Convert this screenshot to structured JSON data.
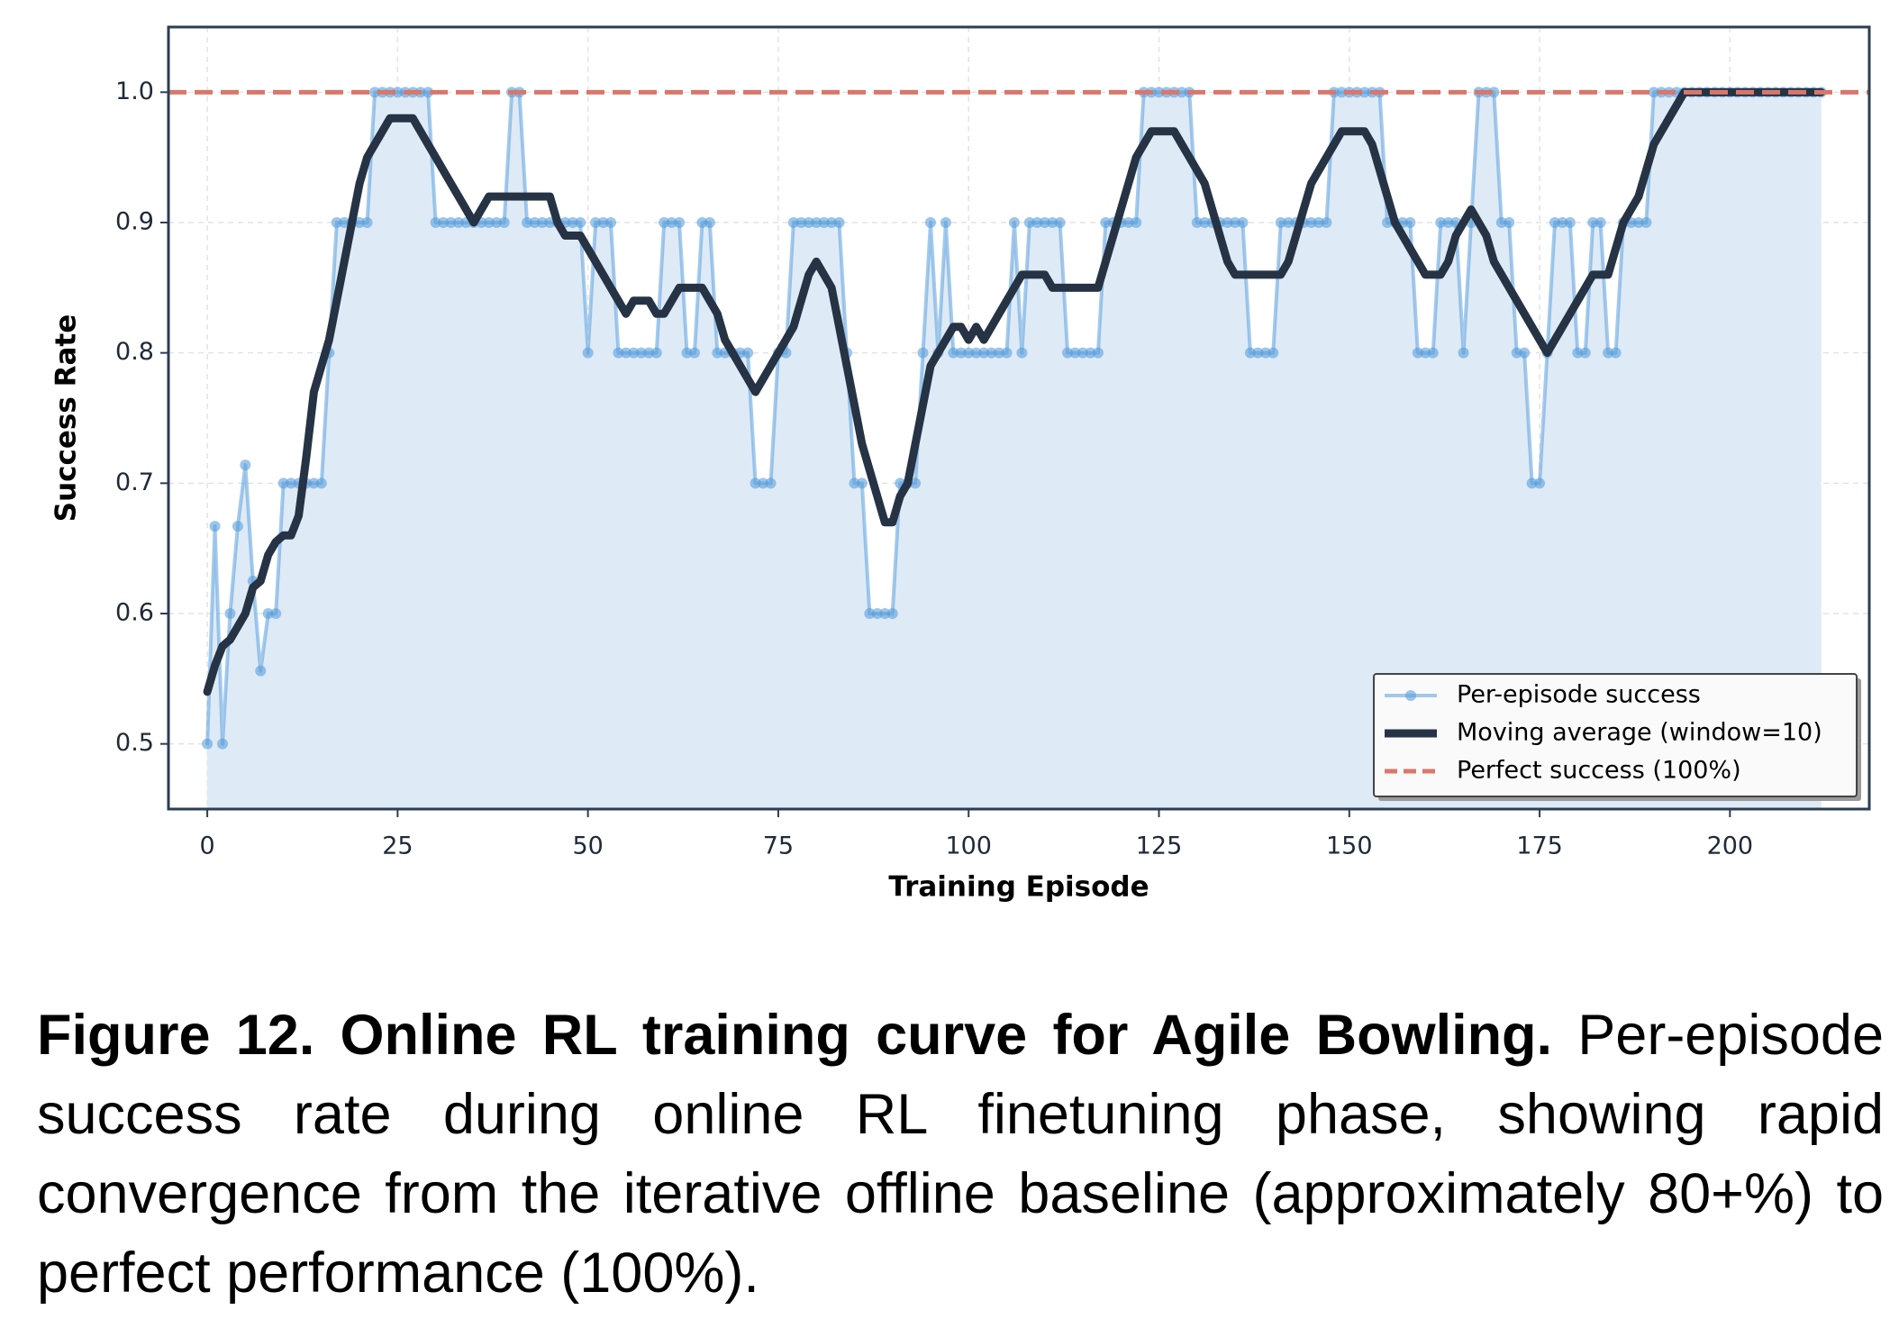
{
  "chart_data": {
    "type": "line",
    "xlabel": "Training Episode",
    "ylabel": "Success Rate",
    "x": [
      0,
      1,
      2,
      3,
      4,
      5,
      6,
      7,
      8,
      9,
      10,
      11,
      12,
      13,
      14,
      15,
      16,
      17,
      18,
      19,
      20,
      21,
      22,
      23,
      24,
      25,
      26,
      27,
      28,
      29,
      30,
      31,
      32,
      33,
      34,
      35,
      36,
      37,
      38,
      39,
      40,
      41,
      42,
      43,
      44,
      45,
      46,
      47,
      48,
      49,
      50,
      51,
      52,
      53,
      54,
      55,
      56,
      57,
      58,
      59,
      60,
      61,
      62,
      63,
      64,
      65,
      66,
      67,
      68,
      69,
      70,
      71,
      72,
      73,
      74,
      75,
      76,
      77,
      78,
      79,
      80,
      81,
      82,
      83,
      84,
      85,
      86,
      87,
      88,
      89,
      90,
      91,
      92,
      93,
      94,
      95,
      96,
      97,
      98,
      99,
      100,
      101,
      102,
      103,
      104,
      105,
      106,
      107,
      108,
      109,
      110,
      111,
      112,
      113,
      114,
      115,
      116,
      117,
      118,
      119,
      120,
      121,
      122,
      123,
      124,
      125,
      126,
      127,
      128,
      129,
      130,
      131,
      132,
      133,
      134,
      135,
      136,
      137,
      138,
      139,
      140,
      141,
      142,
      143,
      144,
      145,
      146,
      147,
      148,
      149,
      150,
      151,
      152,
      153,
      154,
      155,
      156,
      157,
      158,
      159,
      160,
      161,
      162,
      163,
      164,
      165,
      166,
      167,
      168,
      169,
      170,
      171,
      172,
      173,
      174,
      175,
      176,
      177,
      178,
      179,
      180,
      181,
      182,
      183,
      184,
      185,
      186,
      187,
      188,
      189,
      190,
      191,
      192,
      193,
      194,
      195,
      196,
      197,
      198,
      199,
      200,
      201,
      202,
      203,
      204,
      205,
      206,
      207,
      208,
      209,
      210,
      211,
      212
    ],
    "series": [
      {
        "name": "Per-episode success",
        "color": "#5a9fdc",
        "markers": true,
        "fill": "#deeaf6",
        "values": [
          0.5,
          0.667,
          0.5,
          0.6,
          0.667,
          0.714,
          0.625,
          0.556,
          0.6,
          0.6,
          0.7,
          0.7,
          0.7,
          0.7,
          0.7,
          0.7,
          0.8,
          0.9,
          0.9,
          0.9,
          0.9,
          0.9,
          1.0,
          1.0,
          1.0,
          1.0,
          1.0,
          1.0,
          1.0,
          1.0,
          0.9,
          0.9,
          0.9,
          0.9,
          0.9,
          0.9,
          0.9,
          0.9,
          0.9,
          0.9,
          1.0,
          1.0,
          0.9,
          0.9,
          0.9,
          0.9,
          0.9,
          0.9,
          0.9,
          0.9,
          0.8,
          0.9,
          0.9,
          0.9,
          0.8,
          0.8,
          0.8,
          0.8,
          0.8,
          0.8,
          0.9,
          0.9,
          0.9,
          0.8,
          0.8,
          0.9,
          0.9,
          0.8,
          0.8,
          0.8,
          0.8,
          0.8,
          0.7,
          0.7,
          0.7,
          0.8,
          0.8,
          0.9,
          0.9,
          0.9,
          0.9,
          0.9,
          0.9,
          0.9,
          0.8,
          0.7,
          0.7,
          0.6,
          0.6,
          0.6,
          0.6,
          0.7,
          0.7,
          0.7,
          0.8,
          0.9,
          0.8,
          0.9,
          0.8,
          0.8,
          0.8,
          0.8,
          0.8,
          0.8,
          0.8,
          0.8,
          0.9,
          0.8,
          0.9,
          0.9,
          0.9,
          0.9,
          0.9,
          0.8,
          0.8,
          0.8,
          0.8,
          0.8,
          0.9,
          0.9,
          0.9,
          0.9,
          0.9,
          1.0,
          1.0,
          1.0,
          1.0,
          1.0,
          1.0,
          1.0,
          0.9,
          0.9,
          0.9,
          0.9,
          0.9,
          0.9,
          0.9,
          0.8,
          0.8,
          0.8,
          0.8,
          0.9,
          0.9,
          0.9,
          0.9,
          0.9,
          0.9,
          0.9,
          1.0,
          1.0,
          1.0,
          1.0,
          1.0,
          1.0,
          1.0,
          0.9,
          0.9,
          0.9,
          0.9,
          0.8,
          0.8,
          0.8,
          0.9,
          0.9,
          0.9,
          0.8,
          0.9,
          1.0,
          1.0,
          1.0,
          0.9,
          0.9,
          0.8,
          0.8,
          0.7,
          0.7,
          0.8,
          0.9,
          0.9,
          0.9,
          0.8,
          0.8,
          0.9,
          0.9,
          0.8,
          0.8,
          0.9,
          0.9,
          0.9,
          0.9,
          1.0,
          1.0,
          1.0,
          1.0,
          1.0,
          1.0,
          1.0,
          1.0,
          1.0,
          1.0,
          1.0,
          1.0,
          1.0,
          1.0,
          1.0,
          1.0,
          1.0,
          1.0,
          1.0,
          1.0,
          1.0,
          1.0,
          1.0
        ]
      },
      {
        "name": "Moving average (window=10)",
        "color": "#263345",
        "markers": false,
        "values": [
          0.54,
          0.56,
          0.575,
          0.58,
          0.59,
          0.6,
          0.62,
          0.625,
          0.645,
          0.655,
          0.66,
          0.66,
          0.675,
          0.72,
          0.77,
          0.79,
          0.81,
          0.84,
          0.87,
          0.9,
          0.93,
          0.95,
          0.96,
          0.97,
          0.98,
          0.98,
          0.98,
          0.98,
          0.97,
          0.96,
          0.95,
          0.94,
          0.93,
          0.92,
          0.91,
          0.9,
          0.91,
          0.92,
          0.92,
          0.92,
          0.92,
          0.92,
          0.92,
          0.92,
          0.92,
          0.92,
          0.9,
          0.89,
          0.89,
          0.89,
          0.88,
          0.87,
          0.86,
          0.85,
          0.84,
          0.83,
          0.84,
          0.84,
          0.84,
          0.83,
          0.83,
          0.84,
          0.85,
          0.85,
          0.85,
          0.85,
          0.84,
          0.83,
          0.81,
          0.8,
          0.79,
          0.78,
          0.77,
          0.78,
          0.79,
          0.8,
          0.81,
          0.82,
          0.84,
          0.86,
          0.87,
          0.86,
          0.85,
          0.82,
          0.79,
          0.76,
          0.73,
          0.71,
          0.69,
          0.67,
          0.67,
          0.69,
          0.7,
          0.73,
          0.76,
          0.79,
          0.8,
          0.81,
          0.82,
          0.82,
          0.81,
          0.82,
          0.81,
          0.82,
          0.83,
          0.84,
          0.85,
          0.86,
          0.86,
          0.86,
          0.86,
          0.85,
          0.85,
          0.85,
          0.85,
          0.85,
          0.85,
          0.85,
          0.87,
          0.89,
          0.91,
          0.93,
          0.95,
          0.96,
          0.97,
          0.97,
          0.97,
          0.97,
          0.96,
          0.95,
          0.94,
          0.93,
          0.91,
          0.89,
          0.87,
          0.86,
          0.86,
          0.86,
          0.86,
          0.86,
          0.86,
          0.86,
          0.87,
          0.89,
          0.91,
          0.93,
          0.94,
          0.95,
          0.96,
          0.97,
          0.97,
          0.97,
          0.97,
          0.96,
          0.94,
          0.92,
          0.9,
          0.89,
          0.88,
          0.87,
          0.86,
          0.86,
          0.86,
          0.87,
          0.89,
          0.9,
          0.91,
          0.9,
          0.89,
          0.87,
          0.86,
          0.85,
          0.84,
          0.83,
          0.82,
          0.81,
          0.8,
          0.81,
          0.82,
          0.83,
          0.84,
          0.85,
          0.86,
          0.86,
          0.86,
          0.88,
          0.9,
          0.91,
          0.92,
          0.94,
          0.96,
          0.97,
          0.98,
          0.99,
          1,
          1,
          1,
          1,
          1,
          1,
          1,
          1,
          1,
          1,
          1,
          1,
          1,
          1,
          1,
          1,
          1,
          1,
          1
        ]
      }
    ],
    "reference_line": {
      "name": "Perfect success (100%)",
      "value": 1,
      "color": "#d9776c"
    },
    "xlim": [
      -5.1,
      218.3
    ],
    "ylim": [
      0.45,
      1.05
    ],
    "xticks": [
      0,
      25,
      50,
      75,
      100,
      125,
      150,
      175,
      200
    ],
    "yticks": [
      0.5,
      0.6,
      0.7,
      0.8,
      0.9,
      {
        "value": 1,
        "label": "1.0"
      }
    ],
    "grid": true,
    "legend": "lower right"
  },
  "caption": {
    "label": "Figure 12. Online RL training curve for Agile Bowling.",
    "text": "Per-episode success rate during online RL finetuning phase, showing rapid convergence from the iterative offline baseline (approximately 80+%) to perfect performance (100%)."
  }
}
